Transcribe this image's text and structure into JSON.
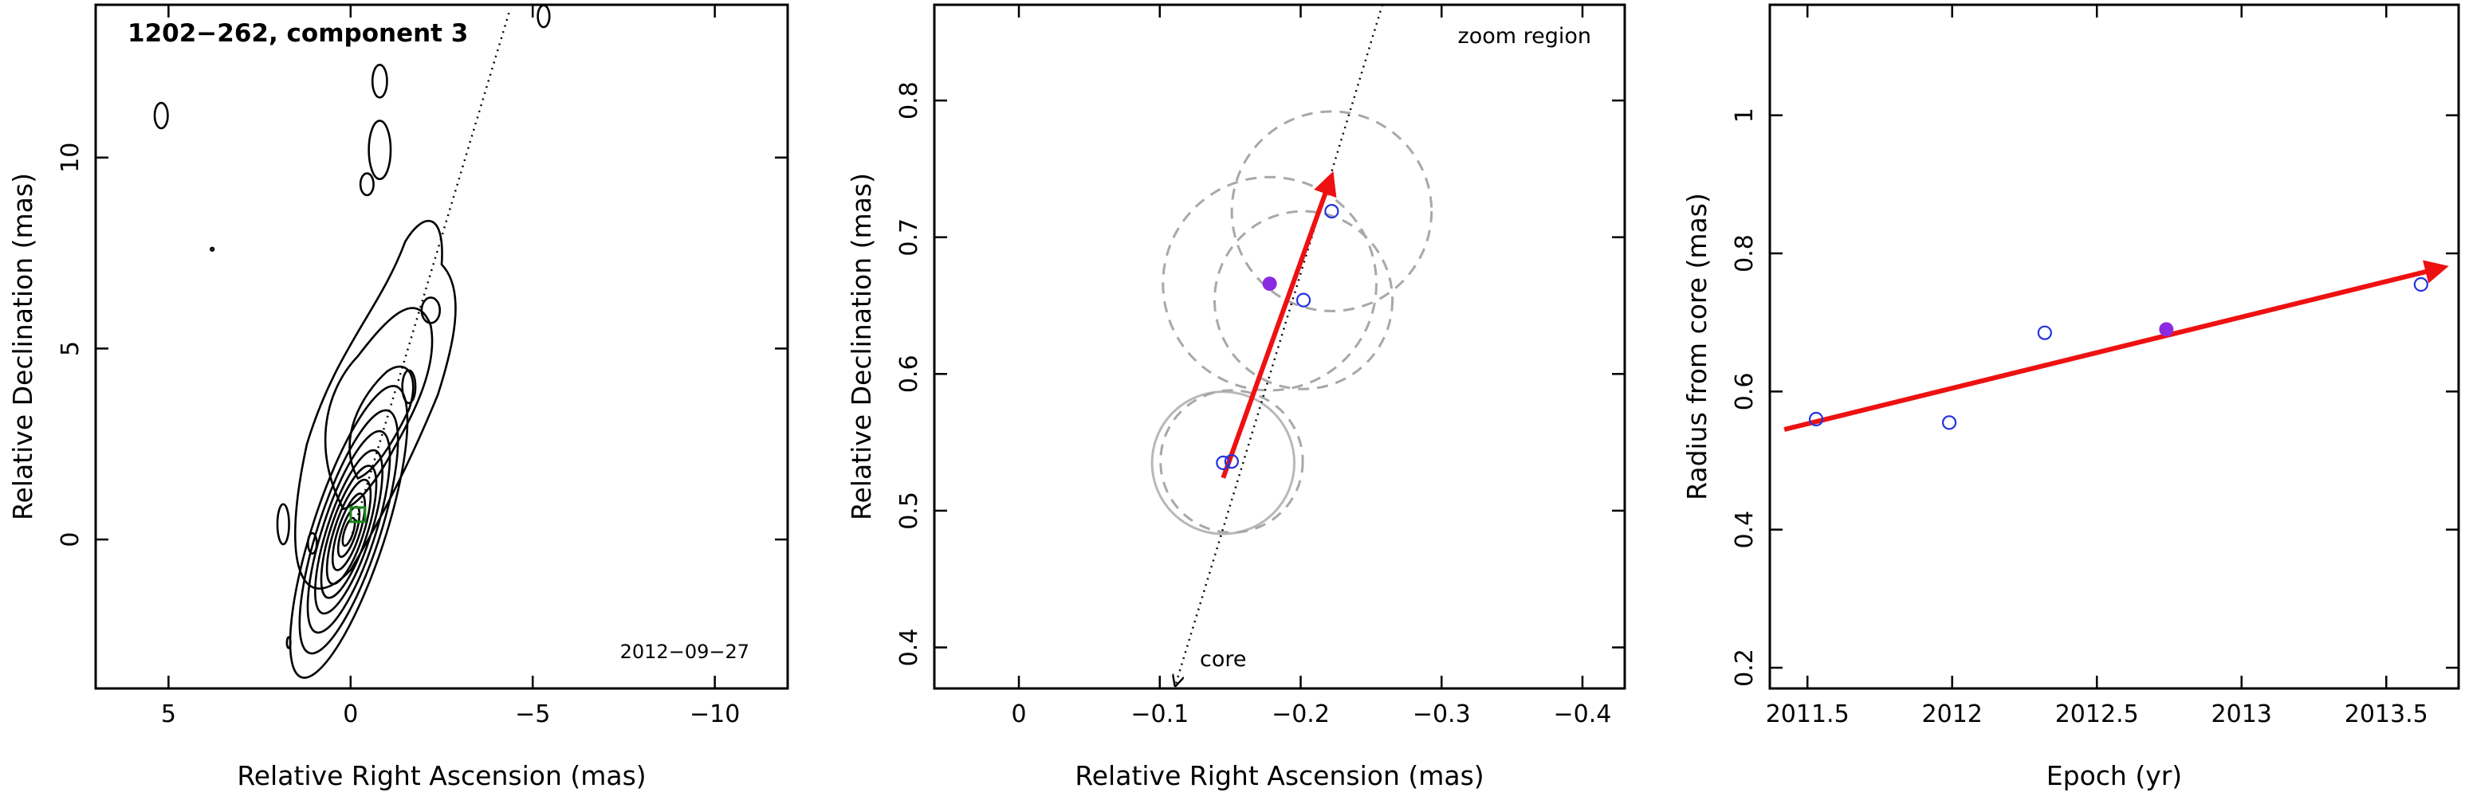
{
  "colors": {
    "motion_arrow": "#ee1111",
    "epoch_point": "#2233dd",
    "current_point": "#8a2be2",
    "ring": "#a8a8a8",
    "contour": "#000000",
    "component_marker": "#1a8a1a"
  },
  "chart_data": [
    {
      "type": "contour",
      "title": "1202−262, component 3",
      "annotation": "2012−09−27",
      "xlabel": "Relative Right Ascension (mas)",
      "ylabel": "Relative Declination (mas)",
      "xlim": [
        7,
        -12
      ],
      "ylim": [
        -3.9,
        14
      ],
      "xticks": [
        5,
        0,
        -5,
        -10
      ],
      "xtick_labels": [
        "5",
        "0",
        "−5",
        "−10"
      ],
      "yticks": [
        0,
        5,
        10
      ],
      "ytick_labels": [
        "0",
        "5",
        "10"
      ],
      "grid": false,
      "jet_axis": {
        "from": [
          0,
          0
        ],
        "direction_deg": 17.5
      },
      "component_marker": [
        -0.2,
        0.65
      ],
      "contour_centers": [
        {
          "x": 0.05,
          "y": 0.2
        },
        {
          "x": -1.6,
          "y": 4.0
        },
        {
          "x": -2.2,
          "y": 6.0
        },
        {
          "x": -0.8,
          "y": 10.2
        }
      ]
    },
    {
      "type": "scatter",
      "title": "",
      "annotations": [
        "zoom region",
        "core"
      ],
      "xlabel": "Relative Right Ascension (mas)",
      "ylabel": "Relative Declination (mas)",
      "xlim": [
        0.06,
        -0.43
      ],
      "ylim": [
        0.37,
        0.87
      ],
      "xticks": [
        0,
        -0.1,
        -0.2,
        -0.3,
        -0.4
      ],
      "xtick_labels": [
        "0",
        "−0.1",
        "−0.2",
        "−0.3",
        "−0.4"
      ],
      "yticks": [
        0.4,
        0.5,
        0.6,
        0.7,
        0.8
      ],
      "ytick_labels": [
        "0.4",
        "0.5",
        "0.6",
        "0.7",
        "0.8"
      ],
      "grid": false,
      "points": [
        {
          "x": -0.145,
          "y": 0.535
        },
        {
          "x": -0.151,
          "y": 0.536
        },
        {
          "x": -0.202,
          "y": 0.654
        },
        {
          "x": -0.222,
          "y": 0.719
        }
      ],
      "current_point": {
        "x": -0.178,
        "y": 0.666
      },
      "uncertainty_circles": [
        {
          "x": -0.145,
          "y": 0.535,
          "r": 0.052,
          "style": "solid"
        },
        {
          "x": -0.151,
          "y": 0.536,
          "r": 0.052,
          "style": "dashed"
        },
        {
          "x": -0.202,
          "y": 0.654,
          "r": 0.065,
          "style": "dashed"
        },
        {
          "x": -0.178,
          "y": 0.666,
          "r": 0.078,
          "style": "dashed"
        },
        {
          "x": -0.222,
          "y": 0.719,
          "r": 0.073,
          "style": "dashed"
        }
      ],
      "motion_vector": {
        "from": [
          -0.145,
          0.524
        ],
        "to": [
          -0.222,
          0.745
        ]
      },
      "jet_axis": {
        "from": [
          -0.258,
          0.87
        ],
        "to": [
          -0.111,
          0.372
        ]
      }
    },
    {
      "type": "scatter",
      "title": "",
      "xlabel": "Epoch (yr)",
      "ylabel": "Radius from core (mas)",
      "xlim": [
        2011.37,
        2013.75
      ],
      "ylim": [
        0.17,
        1.16
      ],
      "xticks": [
        2011.5,
        2012,
        2012.5,
        2013,
        2013.5
      ],
      "xtick_labels": [
        "2011.5",
        "2012",
        "2012.5",
        "2013",
        "2013.5"
      ],
      "yticks": [
        0.2,
        0.4,
        0.6,
        0.8,
        1.0
      ],
      "ytick_labels": [
        "0.2",
        "0.4",
        "0.6",
        "0.8",
        "1"
      ],
      "grid": false,
      "points": [
        {
          "x": 2011.53,
          "y": 0.56
        },
        {
          "x": 2011.99,
          "y": 0.555
        },
        {
          "x": 2012.32,
          "y": 0.685
        },
        {
          "x": 2013.62,
          "y": 0.755
        }
      ],
      "current_point": {
        "x": 2012.74,
        "y": 0.69
      },
      "fit_line": {
        "from": [
          2011.42,
          0.545
        ],
        "to": [
          2013.7,
          0.78
        ]
      }
    }
  ]
}
